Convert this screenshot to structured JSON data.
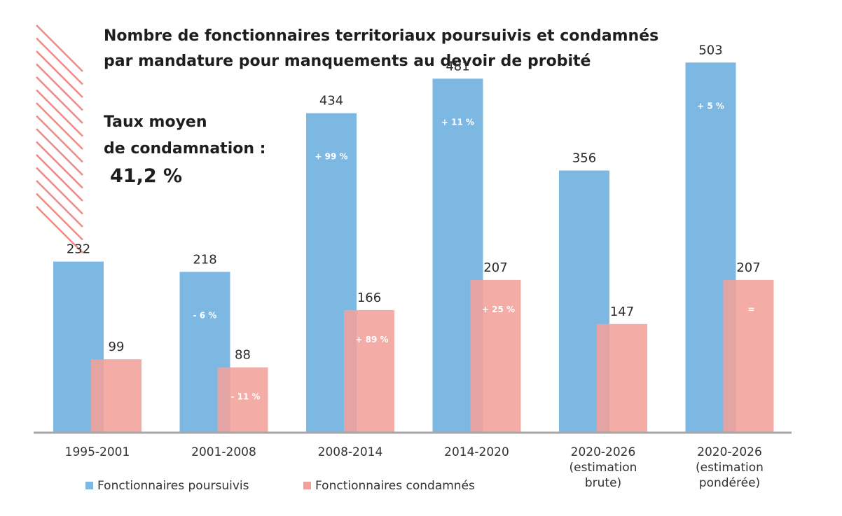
{
  "title_lines": [
    "Nombre de fonctionnaires territoriaux poursuivis et condamnés",
    "par mandature pour manquements au devoir de probité"
  ],
  "rate": {
    "label_lines": [
      "Taux moyen",
      "de condamnation :"
    ],
    "value": "41,2 %"
  },
  "legend": {
    "pursued": "Fonctionnaires poursuivis",
    "convicted": "Fonctionnaires condamnés"
  },
  "colors": {
    "pursued": "#7db8e3",
    "convicted": "#f2a09a",
    "hatch": "#f08b86",
    "axis": "#a6a6a6"
  },
  "chart_data": {
    "type": "bar",
    "categories": [
      [
        "1995-2001"
      ],
      [
        "2001-2008"
      ],
      [
        "2008-2014"
      ],
      [
        "2014-2020"
      ],
      [
        "2020-2026",
        "(estimation",
        "brute)"
      ],
      [
        "2020-2026",
        "(estimation",
        "pondérée)"
      ]
    ],
    "series": [
      {
        "name": "Fonctionnaires poursuivis",
        "values": [
          232,
          218,
          434,
          481,
          356,
          503
        ],
        "change_labels": [
          "",
          "- 6 %",
          "+ 99 %",
          "+ 11 %",
          "",
          "+ 5 %"
        ]
      },
      {
        "name": "Fonctionnaires condamnés",
        "values": [
          99,
          88,
          166,
          207,
          147,
          207
        ],
        "change_labels": [
          "",
          "- 11 %",
          "+ 89 %",
          "+ 25 %",
          "",
          "="
        ]
      }
    ],
    "ylim": [
      0,
      550
    ],
    "legend_position": "bottom-left"
  }
}
